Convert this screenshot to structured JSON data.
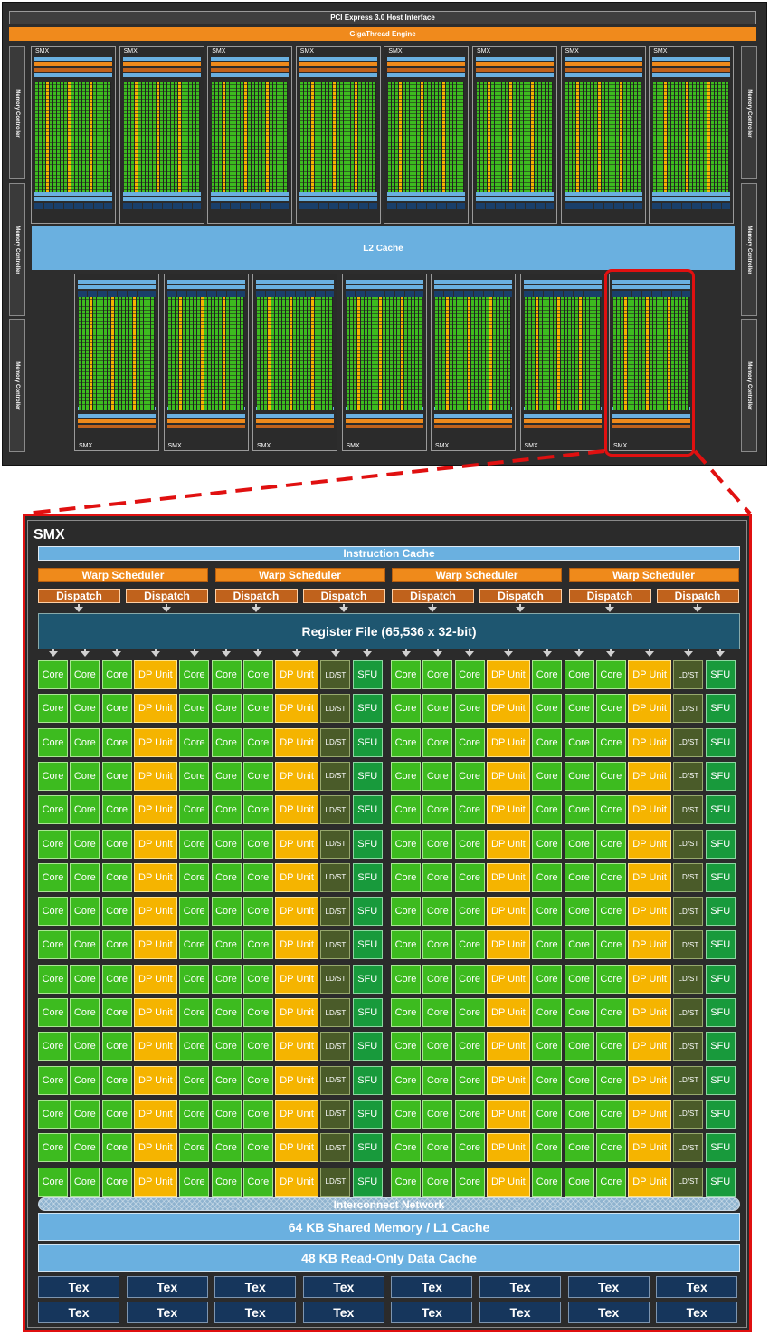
{
  "chip": {
    "pcie_label": "PCI Express 3.0 Host Interface",
    "gigathread_label": "GigaThread Engine",
    "memory_controller_label": "Memory Controller",
    "l2_label": "L2 Cache",
    "smx_label": "SMX",
    "top_row_smx_count": 8,
    "bottom_row_smx_count": 7
  },
  "smx": {
    "title": "SMX",
    "instruction_cache": "Instruction Cache",
    "warp_scheduler": "Warp Scheduler",
    "dispatch": "Dispatch",
    "register_file": "Register File (65,536 x 32-bit)",
    "unit_labels": {
      "core": "Core",
      "dp": "DP Unit",
      "ldst": "LD/ST",
      "sfu": "SFU"
    },
    "unit_rows": 16,
    "interconnect": "Interconnect Network",
    "shared_memory": "64 KB Shared Memory / L1 Cache",
    "readonly_cache": "48 KB Read-Only Data Cache",
    "tex_label": "Tex",
    "tex_rows": 2,
    "tex_per_row": 8
  },
  "colors": {
    "core": "#3dbb1f",
    "dp_unit": "#f5b400",
    "ldst": "#4a5b29",
    "sfu": "#189a3c",
    "cache": "#6ab0e0",
    "scheduler": "#ef8a1b",
    "highlight": "#e01010"
  }
}
